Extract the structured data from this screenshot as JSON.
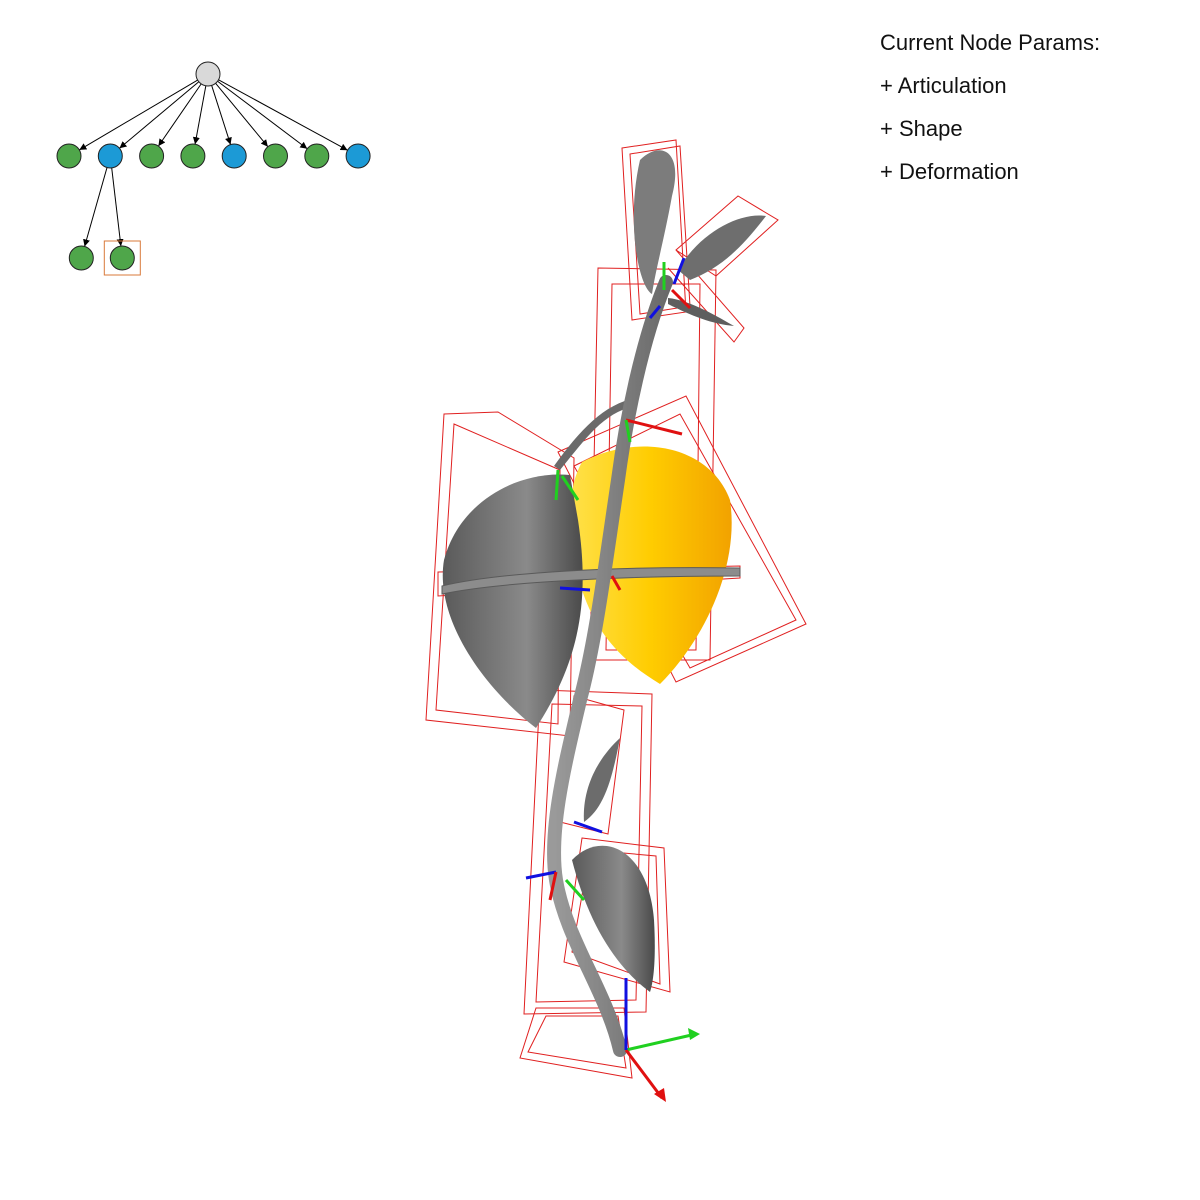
{
  "panel": {
    "title": "Current Node Params:",
    "items": [
      {
        "label": "+ Articulation"
      },
      {
        "label": "+ Shape"
      },
      {
        "label": "+ Deformation"
      }
    ]
  },
  "tree": {
    "root": {
      "color": "#d9d9d9"
    },
    "children": [
      {
        "type": "leaf",
        "color": "#4fa64a"
      },
      {
        "type": "stem",
        "color": "#1c9ad6",
        "children": [
          {
            "type": "leaf",
            "color": "#4fa64a",
            "selected": false
          },
          {
            "type": "leaf",
            "color": "#4fa64a",
            "selected": true
          }
        ]
      },
      {
        "type": "leaf",
        "color": "#4fa64a"
      },
      {
        "type": "leaf",
        "color": "#4fa64a"
      },
      {
        "type": "stem",
        "color": "#1c9ad6"
      },
      {
        "type": "leaf",
        "color": "#4fa64a"
      },
      {
        "type": "leaf",
        "color": "#4fa64a"
      },
      {
        "type": "stem",
        "color": "#1c9ad6"
      }
    ],
    "selection_color": "#d9793a"
  },
  "viewport": {
    "highlight_color": "#ffc400",
    "bbox_color": "#e02020",
    "mesh_color": "#7a7a7a",
    "axis_colors": {
      "x": "#e01010",
      "y": "#20d020",
      "z": "#1010e0"
    }
  }
}
